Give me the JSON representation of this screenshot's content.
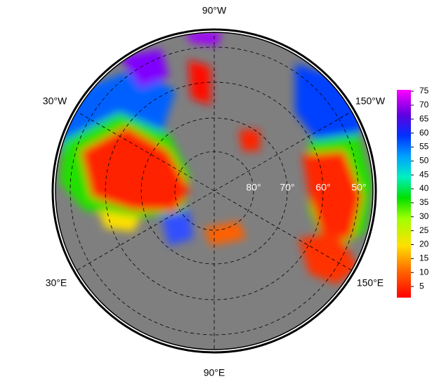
{
  "map": {
    "lon_labels": [
      "90°W",
      "30°W",
      "150°W",
      "30°E",
      "150°E",
      "90°E"
    ],
    "lat_labels": [
      "80°",
      "70°",
      "60°",
      "50°"
    ]
  },
  "colorbar": {
    "range": [
      1,
      75.5
    ],
    "ticks": [
      5,
      10,
      15,
      20,
      25,
      30,
      35,
      40,
      45,
      50,
      55,
      60,
      65,
      70,
      75
    ]
  }
}
